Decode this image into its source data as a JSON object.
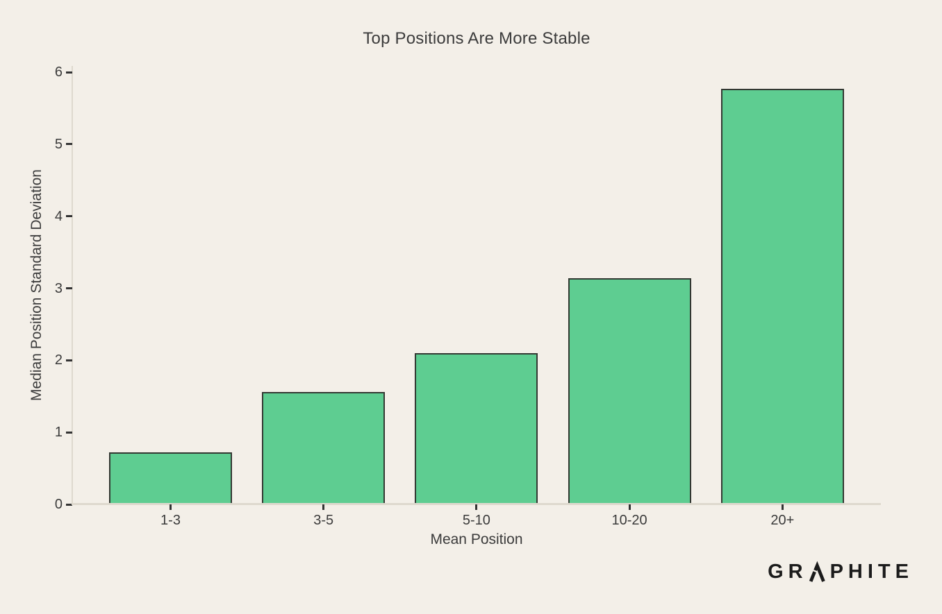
{
  "chart_data": {
    "type": "bar",
    "title": "Top Positions Are More Stable",
    "xlabel": "Mean Position",
    "ylabel": "Median Position Standard Deviation",
    "categories": [
      "1-3",
      "3-5",
      "5-10",
      "10-20",
      "20+"
    ],
    "values": [
      0.72,
      1.56,
      2.1,
      3.14,
      5.77
    ],
    "yticks": [
      0,
      1,
      2,
      3,
      4,
      5,
      6
    ],
    "ylim": [
      0,
      6.09
    ],
    "grid": "off",
    "legend": "none",
    "colors": {
      "background": "#f3efe8",
      "bar_fill": "#5ecd91",
      "bar_edge": "#323832",
      "axis_line": "#ded9ce",
      "tick_mark": "#333333",
      "text": "#3b3b3b",
      "logo": "#1b1b1b"
    }
  },
  "branding": {
    "logo_full": "GRAPHITE",
    "logo_left": "GR",
    "logo_right": "PHITE"
  }
}
